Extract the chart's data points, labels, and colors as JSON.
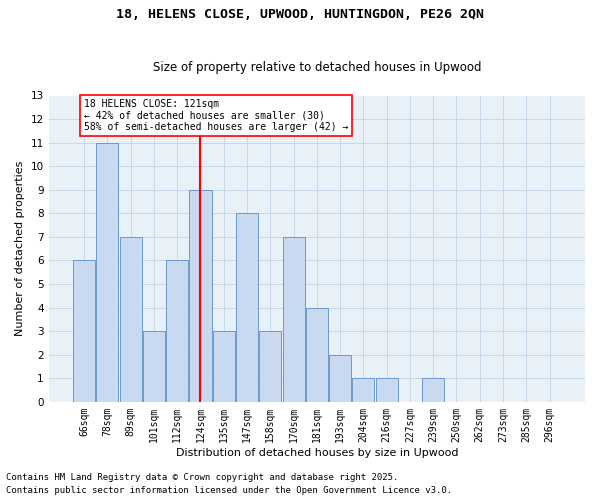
{
  "title": "18, HELENS CLOSE, UPWOOD, HUNTINGDON, PE26 2QN",
  "subtitle": "Size of property relative to detached houses in Upwood",
  "xlabel": "Distribution of detached houses by size in Upwood",
  "ylabel": "Number of detached properties",
  "categories": [
    "66sqm",
    "78sqm",
    "89sqm",
    "101sqm",
    "112sqm",
    "124sqm",
    "135sqm",
    "147sqm",
    "158sqm",
    "170sqm",
    "181sqm",
    "193sqm",
    "204sqm",
    "216sqm",
    "227sqm",
    "239sqm",
    "250sqm",
    "262sqm",
    "273sqm",
    "285sqm",
    "296sqm"
  ],
  "values": [
    6,
    11,
    7,
    3,
    6,
    9,
    3,
    8,
    3,
    7,
    4,
    2,
    1,
    1,
    0,
    1,
    0,
    0,
    0,
    0,
    0
  ],
  "bar_color": "#c9d9f0",
  "bar_edge_color": "#5b8fc9",
  "red_line_index": 5,
  "annotation_line1": "18 HELENS CLOSE: 121sqm",
  "annotation_line2": "← 42% of detached houses are smaller (30)",
  "annotation_line3": "58% of semi-detached houses are larger (42) →",
  "annotation_box_color": "white",
  "annotation_box_edge_color": "red",
  "vline_color": "red",
  "ylim": [
    0,
    13
  ],
  "yticks": [
    0,
    1,
    2,
    3,
    4,
    5,
    6,
    7,
    8,
    9,
    10,
    11,
    12,
    13
  ],
  "grid_color": "#c8d8ea",
  "bg_color": "#e8f0f8",
  "footer_line1": "Contains HM Land Registry data © Crown copyright and database right 2025.",
  "footer_line2": "Contains public sector information licensed under the Open Government Licence v3.0.",
  "title_fontsize": 9.5,
  "subtitle_fontsize": 8.5,
  "label_fontsize": 8,
  "tick_fontsize": 7,
  "annot_fontsize": 7,
  "footer_fontsize": 6.5
}
